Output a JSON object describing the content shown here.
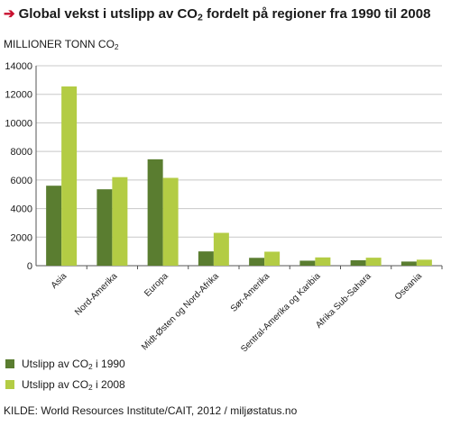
{
  "header": {
    "arrow": "➔",
    "title_before": "Global vekst i utslipp av CO",
    "title_sub": "2",
    "title_after": " fordelt på regioner fra 1990 til 2008"
  },
  "unit_label": {
    "before": "MILLIONER TONN CO",
    "sub": "2"
  },
  "legend": {
    "items": [
      {
        "before": "Utslipp av CO",
        "sub": "2",
        "after": " i 1990",
        "color": "#5a7d30"
      },
      {
        "before": "Utslipp av CO",
        "sub": "2",
        "after": " i 2008",
        "color": "#b3cc44"
      }
    ]
  },
  "source": "KILDE: World Resources Institute/CAIT, 2012 / miljøstatus.no",
  "chart_data": {
    "type": "bar",
    "categories": [
      "Asia",
      "Nord-Amerika",
      "Europa",
      "Midt-Østen og Nord-Afrika",
      "Sør-Amerika",
      "Sentral-Amerika og Karibia",
      "Afrika Sub-Sahara",
      "Oseania"
    ],
    "series": [
      {
        "values": [
          5600,
          5350,
          7450,
          1000,
          550,
          350,
          380,
          290
        ],
        "color": "#5a7d30"
      },
      {
        "values": [
          12550,
          6200,
          6150,
          2300,
          980,
          580,
          560,
          420
        ],
        "color": "#b3cc44"
      }
    ],
    "yticks": [
      0,
      2000,
      4000,
      6000,
      8000,
      10000,
      12000,
      14000
    ],
    "ylim": [
      0,
      14000
    ],
    "grid": true
  }
}
